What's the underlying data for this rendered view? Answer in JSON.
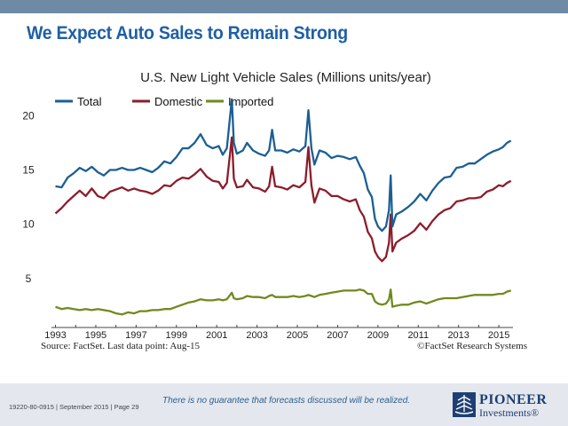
{
  "slide": {
    "title": "We Expect Auto Sales to Remain Strong",
    "source": "Source: FactSet. Last data point: Aug-15",
    "copyright": "©FactSet Research Systems",
    "footer_code": "19220-80-0915 | September 2015 | Page 29",
    "disclaimer": "There is no guarantee that forecasts discussed will be realized.",
    "logo_line1": "PIONEER",
    "logo_line2": "Investments®"
  },
  "colors": {
    "title": "#1f5fa6",
    "total": "#1b5f94",
    "domestic": "#8c1d2b",
    "imported": "#6e8a1e",
    "top_band": "#6f8aa5",
    "footer_bg": "#e4e8ee"
  },
  "chart_data": {
    "type": "line",
    "title": "U.S. New Light Vehicle Sales (Millions units/year)",
    "x_ticks": [
      "1993",
      "1995",
      "1997",
      "1999",
      "2001",
      "2003",
      "2005",
      "2007",
      "2009",
      "2011",
      "2013",
      "2015"
    ],
    "y_ticks": [
      5,
      10,
      15,
      20
    ],
    "xlim": [
      1992.8,
      2015.7
    ],
    "ylim": [
      0.5,
      21.5
    ],
    "grid": false,
    "legend_position": "top-left",
    "series": [
      {
        "name": "Total",
        "color": "#1b5f94",
        "points": [
          [
            1993.0,
            13.5
          ],
          [
            1993.3,
            13.4
          ],
          [
            1993.6,
            14.3
          ],
          [
            1993.9,
            14.7
          ],
          [
            1994.2,
            15.2
          ],
          [
            1994.5,
            14.9
          ],
          [
            1994.8,
            15.3
          ],
          [
            1995.1,
            14.8
          ],
          [
            1995.4,
            14.5
          ],
          [
            1995.7,
            15.0
          ],
          [
            1996.0,
            15.0
          ],
          [
            1996.3,
            15.2
          ],
          [
            1996.6,
            15.0
          ],
          [
            1996.9,
            15.0
          ],
          [
            1997.2,
            15.2
          ],
          [
            1997.5,
            15.0
          ],
          [
            1997.8,
            14.8
          ],
          [
            1998.1,
            15.2
          ],
          [
            1998.4,
            15.8
          ],
          [
            1998.7,
            15.6
          ],
          [
            1999.0,
            16.2
          ],
          [
            1999.3,
            17.0
          ],
          [
            1999.6,
            17.0
          ],
          [
            1999.9,
            17.5
          ],
          [
            2000.2,
            18.3
          ],
          [
            2000.5,
            17.3
          ],
          [
            2000.8,
            17.0
          ],
          [
            2001.1,
            17.2
          ],
          [
            2001.3,
            16.4
          ],
          [
            2001.5,
            17.0
          ],
          [
            2001.75,
            21.5
          ],
          [
            2001.85,
            17.5
          ],
          [
            2002.0,
            16.5
          ],
          [
            2002.3,
            16.8
          ],
          [
            2002.5,
            17.5
          ],
          [
            2002.8,
            16.8
          ],
          [
            2003.1,
            16.5
          ],
          [
            2003.4,
            16.3
          ],
          [
            2003.6,
            16.8
          ],
          [
            2003.75,
            18.7
          ],
          [
            2003.9,
            16.8
          ],
          [
            2004.2,
            16.8
          ],
          [
            2004.5,
            16.6
          ],
          [
            2004.8,
            16.9
          ],
          [
            2005.1,
            16.7
          ],
          [
            2005.4,
            17.2
          ],
          [
            2005.55,
            20.5
          ],
          [
            2005.7,
            17.0
          ],
          [
            2005.85,
            15.5
          ],
          [
            2006.1,
            16.8
          ],
          [
            2006.4,
            16.6
          ],
          [
            2006.7,
            16.1
          ],
          [
            2007.0,
            16.3
          ],
          [
            2007.3,
            16.2
          ],
          [
            2007.6,
            16.0
          ],
          [
            2007.9,
            16.2
          ],
          [
            2008.1,
            15.4
          ],
          [
            2008.3,
            14.7
          ],
          [
            2008.5,
            13.2
          ],
          [
            2008.7,
            12.5
          ],
          [
            2008.85,
            10.5
          ],
          [
            2009.0,
            9.8
          ],
          [
            2009.2,
            9.4
          ],
          [
            2009.4,
            9.8
          ],
          [
            2009.55,
            11.3
          ],
          [
            2009.63,
            14.5
          ],
          [
            2009.72,
            9.8
          ],
          [
            2009.9,
            10.9
          ],
          [
            2010.2,
            11.2
          ],
          [
            2010.5,
            11.6
          ],
          [
            2010.8,
            12.1
          ],
          [
            2011.1,
            12.8
          ],
          [
            2011.4,
            12.2
          ],
          [
            2011.7,
            13.1
          ],
          [
            2012.0,
            13.8
          ],
          [
            2012.3,
            14.3
          ],
          [
            2012.6,
            14.4
          ],
          [
            2012.9,
            15.2
          ],
          [
            2013.2,
            15.3
          ],
          [
            2013.5,
            15.6
          ],
          [
            2013.8,
            15.6
          ],
          [
            2014.1,
            16.0
          ],
          [
            2014.4,
            16.4
          ],
          [
            2014.7,
            16.7
          ],
          [
            2015.0,
            16.9
          ],
          [
            2015.2,
            17.1
          ],
          [
            2015.4,
            17.5
          ],
          [
            2015.6,
            17.7
          ]
        ]
      },
      {
        "name": "Domestic",
        "color": "#8c1d2b",
        "points": [
          [
            1993.0,
            11.0
          ],
          [
            1993.3,
            11.5
          ],
          [
            1993.6,
            12.1
          ],
          [
            1993.9,
            12.6
          ],
          [
            1994.2,
            13.1
          ],
          [
            1994.5,
            12.6
          ],
          [
            1994.8,
            13.3
          ],
          [
            1995.1,
            12.6
          ],
          [
            1995.4,
            12.4
          ],
          [
            1995.7,
            13.0
          ],
          [
            1996.0,
            13.2
          ],
          [
            1996.3,
            13.4
          ],
          [
            1996.6,
            13.1
          ],
          [
            1996.9,
            13.3
          ],
          [
            1997.2,
            13.1
          ],
          [
            1997.5,
            13.0
          ],
          [
            1997.8,
            12.8
          ],
          [
            1998.1,
            13.1
          ],
          [
            1998.4,
            13.6
          ],
          [
            1998.7,
            13.5
          ],
          [
            1999.0,
            14.0
          ],
          [
            1999.3,
            14.3
          ],
          [
            1999.6,
            14.2
          ],
          [
            1999.9,
            14.6
          ],
          [
            2000.2,
            15.1
          ],
          [
            2000.5,
            14.4
          ],
          [
            2000.8,
            14.0
          ],
          [
            2001.1,
            13.9
          ],
          [
            2001.3,
            13.3
          ],
          [
            2001.5,
            13.8
          ],
          [
            2001.75,
            18.0
          ],
          [
            2001.85,
            14.2
          ],
          [
            2002.0,
            13.4
          ],
          [
            2002.3,
            13.5
          ],
          [
            2002.5,
            14.1
          ],
          [
            2002.8,
            13.4
          ],
          [
            2003.1,
            13.3
          ],
          [
            2003.4,
            13.0
          ],
          [
            2003.6,
            13.5
          ],
          [
            2003.75,
            15.3
          ],
          [
            2003.9,
            13.5
          ],
          [
            2004.2,
            13.4
          ],
          [
            2004.5,
            13.2
          ],
          [
            2004.8,
            13.6
          ],
          [
            2005.1,
            13.4
          ],
          [
            2005.4,
            13.9
          ],
          [
            2005.55,
            17.1
          ],
          [
            2005.7,
            13.6
          ],
          [
            2005.85,
            12.0
          ],
          [
            2006.1,
            13.3
          ],
          [
            2006.4,
            13.1
          ],
          [
            2006.7,
            12.6
          ],
          [
            2007.0,
            12.6
          ],
          [
            2007.3,
            12.3
          ],
          [
            2007.6,
            12.1
          ],
          [
            2007.9,
            12.3
          ],
          [
            2008.1,
            11.3
          ],
          [
            2008.3,
            10.7
          ],
          [
            2008.5,
            9.3
          ],
          [
            2008.7,
            8.7
          ],
          [
            2008.85,
            7.5
          ],
          [
            2009.0,
            7.0
          ],
          [
            2009.2,
            6.6
          ],
          [
            2009.4,
            7.0
          ],
          [
            2009.55,
            8.3
          ],
          [
            2009.63,
            10.9
          ],
          [
            2009.72,
            7.5
          ],
          [
            2009.9,
            8.3
          ],
          [
            2010.2,
            8.7
          ],
          [
            2010.5,
            9.0
          ],
          [
            2010.8,
            9.4
          ],
          [
            2011.1,
            10.1
          ],
          [
            2011.4,
            9.5
          ],
          [
            2011.7,
            10.3
          ],
          [
            2012.0,
            10.9
          ],
          [
            2012.3,
            11.3
          ],
          [
            2012.6,
            11.5
          ],
          [
            2012.9,
            12.1
          ],
          [
            2013.2,
            12.2
          ],
          [
            2013.5,
            12.4
          ],
          [
            2013.8,
            12.4
          ],
          [
            2014.1,
            12.5
          ],
          [
            2014.4,
            13.0
          ],
          [
            2014.7,
            13.2
          ],
          [
            2015.0,
            13.6
          ],
          [
            2015.2,
            13.5
          ],
          [
            2015.4,
            13.8
          ],
          [
            2015.6,
            14.0
          ]
        ]
      },
      {
        "name": "Imported",
        "color": "#6e8a1e",
        "points": [
          [
            1993.0,
            2.4
          ],
          [
            1993.3,
            2.2
          ],
          [
            1993.6,
            2.3
          ],
          [
            1993.9,
            2.2
          ],
          [
            1994.2,
            2.1
          ],
          [
            1994.5,
            2.2
          ],
          [
            1994.8,
            2.1
          ],
          [
            1995.1,
            2.2
          ],
          [
            1995.4,
            2.1
          ],
          [
            1995.7,
            2.0
          ],
          [
            1996.0,
            1.8
          ],
          [
            1996.3,
            1.7
          ],
          [
            1996.6,
            1.9
          ],
          [
            1996.9,
            1.8
          ],
          [
            1997.2,
            2.0
          ],
          [
            1997.5,
            2.0
          ],
          [
            1997.8,
            2.1
          ],
          [
            1998.1,
            2.1
          ],
          [
            1998.4,
            2.2
          ],
          [
            1998.7,
            2.2
          ],
          [
            1999.0,
            2.4
          ],
          [
            1999.3,
            2.6
          ],
          [
            1999.6,
            2.8
          ],
          [
            1999.9,
            2.9
          ],
          [
            2000.2,
            3.1
          ],
          [
            2000.5,
            3.0
          ],
          [
            2000.8,
            3.0
          ],
          [
            2001.1,
            3.1
          ],
          [
            2001.3,
            3.0
          ],
          [
            2001.5,
            3.1
          ],
          [
            2001.75,
            3.7
          ],
          [
            2001.85,
            3.2
          ],
          [
            2002.0,
            3.1
          ],
          [
            2002.3,
            3.2
          ],
          [
            2002.5,
            3.4
          ],
          [
            2002.8,
            3.3
          ],
          [
            2003.1,
            3.3
          ],
          [
            2003.4,
            3.2
          ],
          [
            2003.6,
            3.4
          ],
          [
            2003.75,
            3.5
          ],
          [
            2003.9,
            3.3
          ],
          [
            2004.2,
            3.3
          ],
          [
            2004.5,
            3.3
          ],
          [
            2004.8,
            3.4
          ],
          [
            2005.1,
            3.3
          ],
          [
            2005.4,
            3.4
          ],
          [
            2005.55,
            3.5
          ],
          [
            2005.7,
            3.4
          ],
          [
            2005.85,
            3.3
          ],
          [
            2006.1,
            3.5
          ],
          [
            2006.4,
            3.6
          ],
          [
            2006.7,
            3.7
          ],
          [
            2007.0,
            3.8
          ],
          [
            2007.3,
            3.9
          ],
          [
            2007.6,
            3.9
          ],
          [
            2007.9,
            3.9
          ],
          [
            2008.1,
            4.0
          ],
          [
            2008.3,
            3.9
          ],
          [
            2008.5,
            3.6
          ],
          [
            2008.7,
            3.6
          ],
          [
            2008.85,
            2.9
          ],
          [
            2009.0,
            2.7
          ],
          [
            2009.2,
            2.6
          ],
          [
            2009.4,
            2.7
          ],
          [
            2009.55,
            3.1
          ],
          [
            2009.63,
            4.0
          ],
          [
            2009.72,
            2.4
          ],
          [
            2009.9,
            2.5
          ],
          [
            2010.2,
            2.6
          ],
          [
            2010.5,
            2.6
          ],
          [
            2010.8,
            2.8
          ],
          [
            2011.1,
            2.9
          ],
          [
            2011.4,
            2.7
          ],
          [
            2011.7,
            2.9
          ],
          [
            2012.0,
            3.1
          ],
          [
            2012.3,
            3.2
          ],
          [
            2012.6,
            3.2
          ],
          [
            2012.9,
            3.2
          ],
          [
            2013.2,
            3.3
          ],
          [
            2013.5,
            3.4
          ],
          [
            2013.8,
            3.5
          ],
          [
            2014.1,
            3.5
          ],
          [
            2014.4,
            3.5
          ],
          [
            2014.7,
            3.5
          ],
          [
            2015.0,
            3.6
          ],
          [
            2015.2,
            3.6
          ],
          [
            2015.4,
            3.8
          ],
          [
            2015.6,
            3.9
          ]
        ]
      }
    ]
  }
}
